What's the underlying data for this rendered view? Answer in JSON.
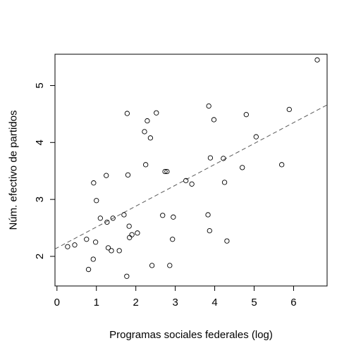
{
  "chart_data": {
    "type": "scatter",
    "xlabel": "Programas sociales federales (log)",
    "ylabel": "Núm. efectivo de partidos",
    "xlim": [
      -0.05,
      6.85
    ],
    "ylim": [
      1.48,
      5.55
    ],
    "x_ticks": [
      0,
      1,
      2,
      3,
      4,
      5,
      6
    ],
    "y_ticks": [
      2,
      3,
      4,
      5
    ],
    "x_tick_labels": [
      "0",
      "1",
      "2",
      "3",
      "4",
      "5",
      "6"
    ],
    "y_tick_labels": [
      "2",
      "3",
      "4",
      "5"
    ],
    "grid": false,
    "legend": "none",
    "marker": "open-circle",
    "points": [
      {
        "x": 0.27,
        "y": 2.17
      },
      {
        "x": 0.45,
        "y": 2.2
      },
      {
        "x": 0.75,
        "y": 2.3
      },
      {
        "x": 0.8,
        "y": 1.77
      },
      {
        "x": 0.92,
        "y": 1.95
      },
      {
        "x": 0.93,
        "y": 3.29
      },
      {
        "x": 0.98,
        "y": 2.25
      },
      {
        "x": 1.0,
        "y": 2.98
      },
      {
        "x": 1.1,
        "y": 2.67
      },
      {
        "x": 1.25,
        "y": 3.42
      },
      {
        "x": 1.27,
        "y": 2.6
      },
      {
        "x": 1.3,
        "y": 2.15
      },
      {
        "x": 1.38,
        "y": 2.1
      },
      {
        "x": 1.42,
        "y": 2.67
      },
      {
        "x": 1.58,
        "y": 2.1
      },
      {
        "x": 1.7,
        "y": 2.73
      },
      {
        "x": 1.77,
        "y": 1.65
      },
      {
        "x": 1.78,
        "y": 4.51
      },
      {
        "x": 1.8,
        "y": 3.43
      },
      {
        "x": 1.83,
        "y": 2.53
      },
      {
        "x": 1.84,
        "y": 2.33
      },
      {
        "x": 1.9,
        "y": 2.38
      },
      {
        "x": 2.04,
        "y": 2.41
      },
      {
        "x": 2.22,
        "y": 4.19
      },
      {
        "x": 2.25,
        "y": 3.61
      },
      {
        "x": 2.29,
        "y": 4.38
      },
      {
        "x": 2.37,
        "y": 4.08
      },
      {
        "x": 2.41,
        "y": 1.84
      },
      {
        "x": 2.52,
        "y": 4.52
      },
      {
        "x": 2.68,
        "y": 2.72
      },
      {
        "x": 2.74,
        "y": 3.49
      },
      {
        "x": 2.79,
        "y": 3.49
      },
      {
        "x": 2.86,
        "y": 1.84
      },
      {
        "x": 2.93,
        "y": 2.3
      },
      {
        "x": 2.95,
        "y": 2.69
      },
      {
        "x": 3.27,
        "y": 3.33
      },
      {
        "x": 3.42,
        "y": 3.27
      },
      {
        "x": 3.83,
        "y": 2.73
      },
      {
        "x": 3.85,
        "y": 4.64
      },
      {
        "x": 3.87,
        "y": 2.45
      },
      {
        "x": 3.89,
        "y": 3.73
      },
      {
        "x": 3.98,
        "y": 4.4
      },
      {
        "x": 4.22,
        "y": 3.72
      },
      {
        "x": 4.25,
        "y": 3.3
      },
      {
        "x": 4.31,
        "y": 2.27
      },
      {
        "x": 4.7,
        "y": 3.56
      },
      {
        "x": 4.8,
        "y": 4.49
      },
      {
        "x": 5.05,
        "y": 4.1
      },
      {
        "x": 5.7,
        "y": 3.61
      },
      {
        "x": 5.89,
        "y": 4.58
      },
      {
        "x": 6.6,
        "y": 5.45
      }
    ],
    "fit_line": {
      "style": "dashed",
      "x": [
        -0.05,
        6.85
      ],
      "y": [
        2.13,
        4.66
      ]
    }
  },
  "colors": {
    "axis": "#000000",
    "points": "#000000",
    "fit_line": "#5a5a5a",
    "background": "#ffffff"
  }
}
